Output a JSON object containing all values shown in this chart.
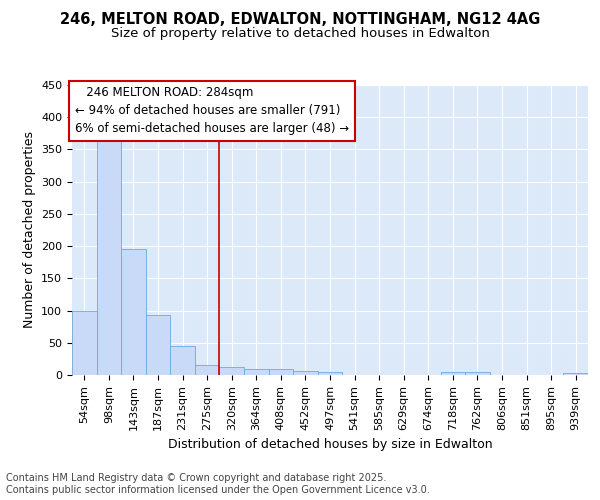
{
  "title_line1": "246, MELTON ROAD, EDWALTON, NOTTINGHAM, NG12 4AG",
  "title_line2": "Size of property relative to detached houses in Edwalton",
  "xlabel": "Distribution of detached houses by size in Edwalton",
  "ylabel": "Number of detached properties",
  "bar_labels": [
    "54sqm",
    "98sqm",
    "143sqm",
    "187sqm",
    "231sqm",
    "275sqm",
    "320sqm",
    "364sqm",
    "408sqm",
    "452sqm",
    "497sqm",
    "541sqm",
    "585sqm",
    "629sqm",
    "674sqm",
    "718sqm",
    "762sqm",
    "806sqm",
    "851sqm",
    "895sqm",
    "939sqm"
  ],
  "bar_values": [
    100,
    365,
    195,
    93,
    45,
    15,
    13,
    10,
    9,
    6,
    5,
    0,
    0,
    0,
    0,
    5,
    4,
    0,
    0,
    0,
    3
  ],
  "bar_color": "#c9daf8",
  "bar_edge_color": "#6fa8dc",
  "bg_color": "#dce9f9",
  "grid_color": "#ffffff",
  "vline_x": 5.5,
  "vline_color": "#cc0000",
  "annotation_text": "   246 MELTON ROAD: 284sqm\n← 94% of detached houses are smaller (791)\n6% of semi-detached houses are larger (48) →",
  "annotation_box_color": "#ffffff",
  "annotation_box_edge": "#cc0000",
  "ylim": [
    0,
    450
  ],
  "yticks": [
    0,
    50,
    100,
    150,
    200,
    250,
    300,
    350,
    400,
    450
  ],
  "footnote": "Contains HM Land Registry data © Crown copyright and database right 2025.\nContains public sector information licensed under the Open Government Licence v3.0.",
  "title_fontsize": 10.5,
  "subtitle_fontsize": 9.5,
  "axis_label_fontsize": 9,
  "tick_fontsize": 8,
  "annotation_fontsize": 8.5,
  "footnote_fontsize": 7
}
